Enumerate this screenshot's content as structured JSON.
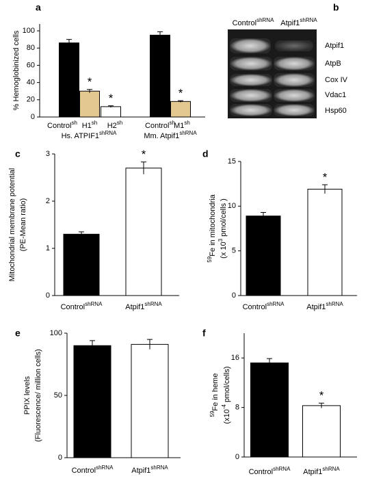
{
  "chart_data": [
    {
      "panel": "a",
      "type": "bar",
      "y_label": [
        [
          "% Hemoglobinized cells"
        ]
      ],
      "categories": [
        [
          "Control",
          {
            "sup": "sh"
          }
        ],
        [
          "H1",
          {
            "sup": "sh"
          }
        ],
        [
          "H2",
          {
            "sup": "sh"
          }
        ],
        [
          "Control",
          {
            "sup": "sh"
          }
        ],
        [
          "M1",
          {
            "sup": "sh"
          }
        ]
      ],
      "groups": [
        [
          "Hs. ATPIF1",
          {
            "sup": "shRNA"
          }
        ],
        [
          "Mm. Atpif1",
          {
            "sup": "shRNA"
          }
        ]
      ],
      "values": [
        86,
        30,
        12,
        95,
        18
      ],
      "errors": [
        4,
        2,
        1,
        4,
        1
      ],
      "colors": [
        "#000000",
        "#e3c98f",
        "#ffffff",
        "#000000",
        "#e3c98f"
      ],
      "significance": [
        null,
        "*",
        "*",
        null,
        "*"
      ],
      "ylim": [
        0,
        108
      ],
      "yticks": [
        0,
        20,
        40,
        60,
        80,
        100
      ]
    },
    {
      "panel": "c",
      "type": "bar",
      "y_label": [
        [
          "Mitochondrial membrane potential"
        ],
        [
          "(PE-Mean ratio)"
        ]
      ],
      "categories": [
        [
          "Control",
          {
            "sup": "shRNA"
          }
        ],
        [
          "Atpif1",
          {
            "sup": "shRNA"
          }
        ]
      ],
      "values": [
        1.3,
        2.7
      ],
      "errors": [
        0.05,
        0.13
      ],
      "colors": [
        "#000000",
        "#ffffff"
      ],
      "significance": [
        null,
        "*"
      ],
      "ylim": [
        0,
        3
      ],
      "yticks": [
        0,
        1,
        2,
        3
      ]
    },
    {
      "panel": "d",
      "type": "bar",
      "y_label": [
        [
          {
            "sup": "59"
          },
          "Fe in mitochondria"
        ],
        [
          "(x 10",
          {
            "sup": "3"
          },
          " pmol/cells )"
        ]
      ],
      "categories": [
        [
          "Control",
          {
            "sup": "shRNA"
          }
        ],
        [
          "Atpif1",
          {
            "sup": "shRNA"
          }
        ]
      ],
      "values": [
        8.9,
        11.9
      ],
      "errors": [
        0.4,
        0.5
      ],
      "colors": [
        "#000000",
        "#ffffff"
      ],
      "significance": [
        null,
        "*"
      ],
      "ylim": [
        0,
        15
      ],
      "yticks": [
        0,
        5,
        10,
        15
      ]
    },
    {
      "panel": "e",
      "type": "bar",
      "y_label": [
        [
          "PPIX levels"
        ],
        [
          "(Fluorescence/ million cells)"
        ]
      ],
      "categories": [
        [
          "Control",
          {
            "sup": "shRNA"
          }
        ],
        [
          "Atpif1",
          {
            "sup": "shRNA"
          }
        ]
      ],
      "values": [
        90,
        91
      ],
      "errors": [
        4,
        4
      ],
      "colors": [
        "#000000",
        "#ffffff"
      ],
      "significance": [
        null,
        null
      ],
      "ylim": [
        0,
        100
      ],
      "yticks": [
        0,
        50,
        100
      ]
    },
    {
      "panel": "f",
      "type": "bar",
      "y_label": [
        [
          {
            "sup": "59"
          },
          "Fe in heme"
        ],
        [
          "(x10",
          {
            "sup": "-4"
          },
          " pmol/cells)"
        ]
      ],
      "categories": [
        [
          "Control",
          {
            "sup": "shRNA"
          }
        ],
        [
          "Atpif1",
          {
            "sup": "shRNA"
          }
        ]
      ],
      "values": [
        15.2,
        8.3
      ],
      "errors": [
        0.7,
        0.4
      ],
      "colors": [
        "#000000",
        "#ffffff"
      ],
      "significance": [
        null,
        "*"
      ],
      "ylim": [
        0,
        20
      ],
      "yticks": [
        0,
        8,
        16
      ]
    }
  ],
  "blot": {
    "panel": "b",
    "lanes": [
      [
        "Control",
        {
          "sup": "shRNA"
        }
      ],
      [
        "Atpif1",
        {
          "sup": "shRNA"
        }
      ]
    ],
    "proteins": [
      "Atpif1",
      "AtpB",
      "Cox IV",
      "Vdac1",
      "Hsp60"
    ]
  }
}
